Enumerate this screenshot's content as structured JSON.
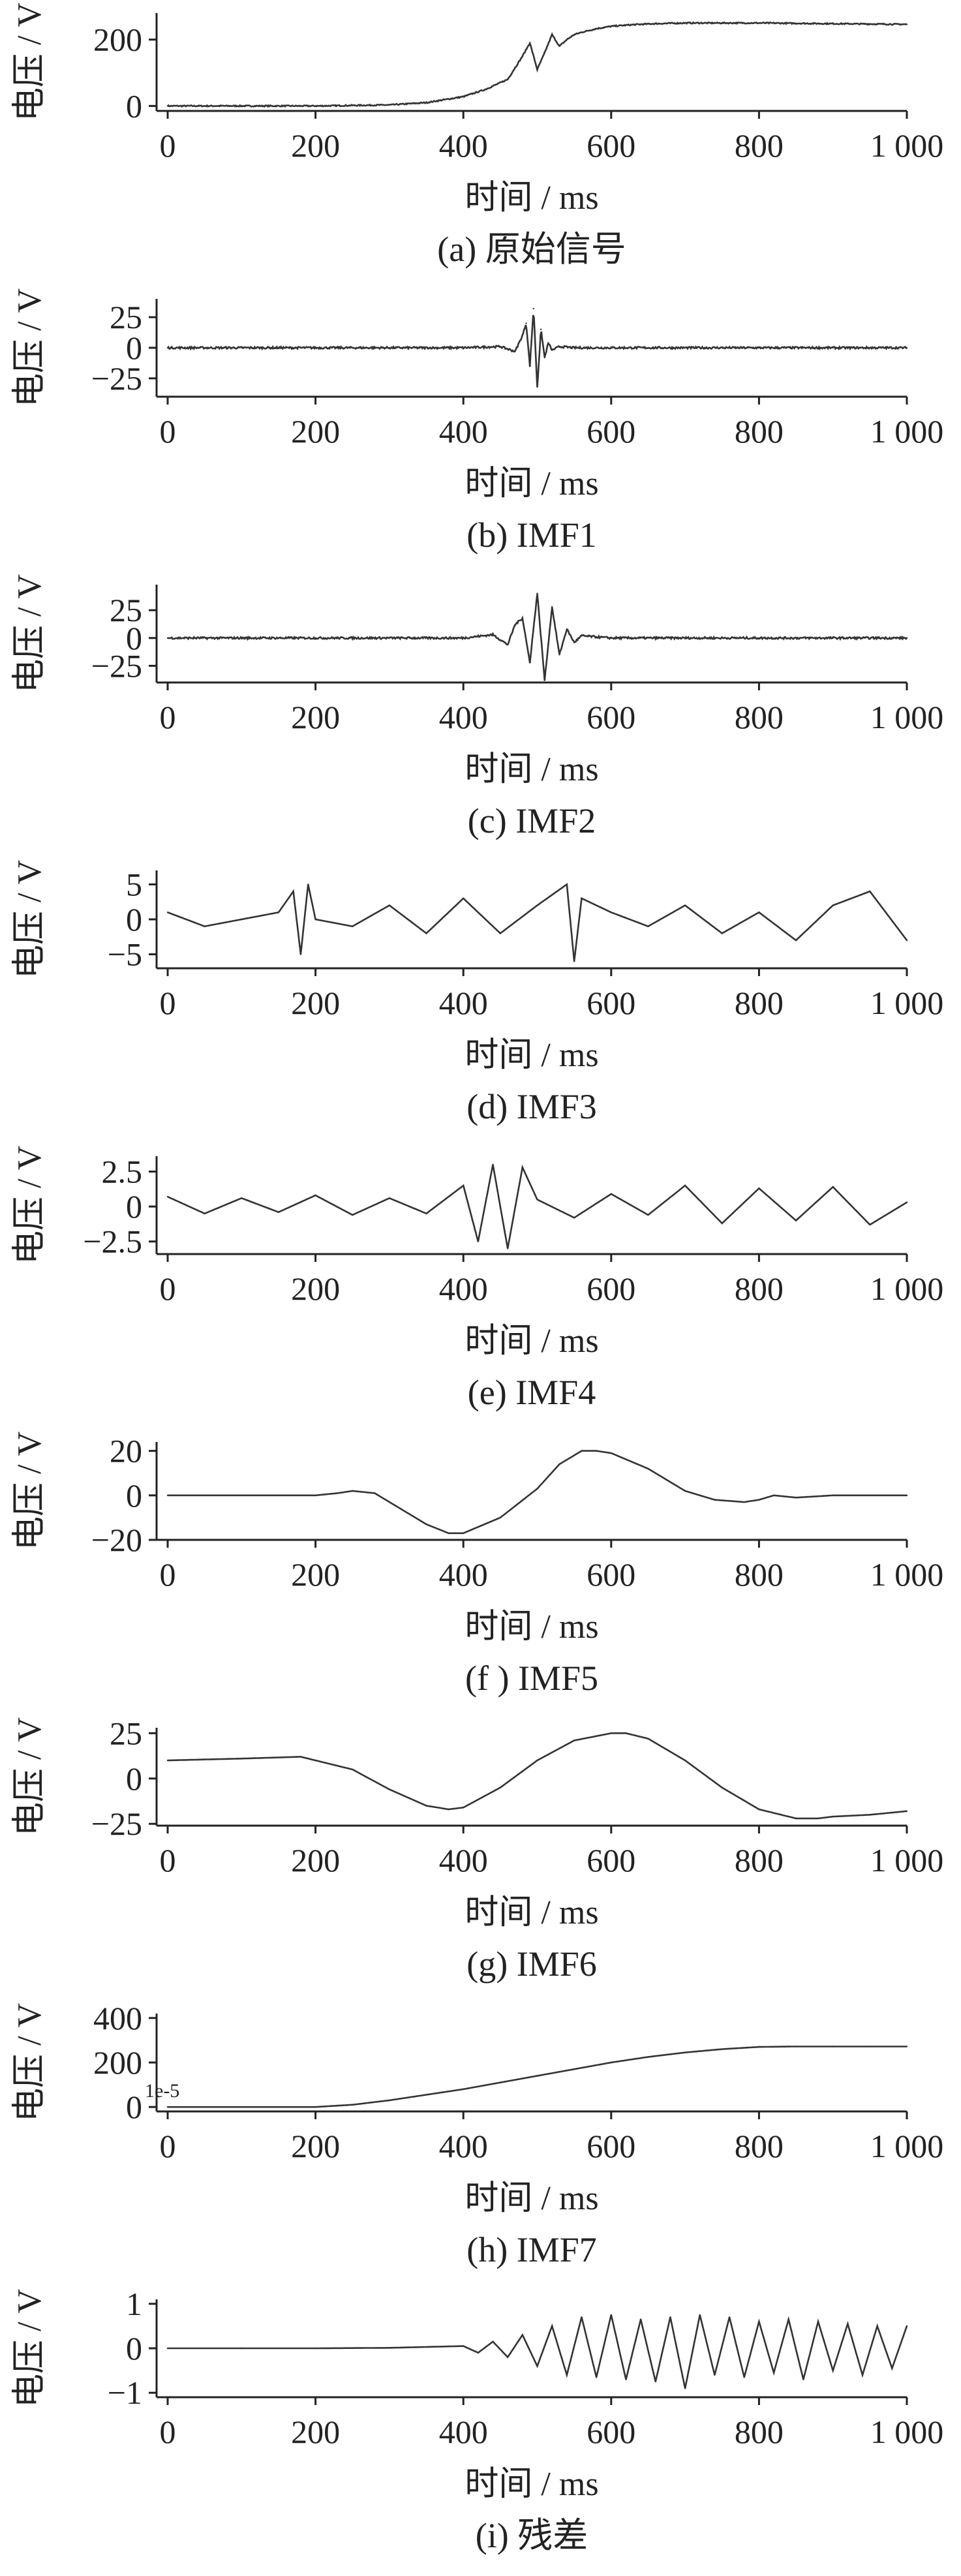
{
  "chart_data": [
    {
      "type": "line",
      "caption": "(a)  原始信号",
      "xlabel": "时间 / ms",
      "ylabel": "电压 / V",
      "xlim": [
        -15,
        1000
      ],
      "ylim": [
        -15,
        280
      ],
      "xticks": [
        0,
        200,
        400,
        600,
        800,
        1000
      ],
      "xtick_labels": [
        "0",
        "200",
        "400",
        "600",
        "800",
        "1 000"
      ],
      "yticks": [
        0,
        200
      ],
      "ytick_labels": [
        "0",
        "200"
      ],
      "series": [
        {
          "x": [
            0,
            100,
            200,
            300,
            350,
            400,
            430,
            460,
            480,
            490,
            500,
            510,
            520,
            530,
            540,
            550,
            560,
            580,
            600,
            630,
            660,
            700,
            750,
            800,
            850,
            900,
            950,
            1000
          ],
          "y": [
            0,
            0,
            0,
            3,
            10,
            28,
            50,
            80,
            150,
            190,
            110,
            160,
            215,
            180,
            200,
            215,
            222,
            233,
            240,
            245,
            248,
            250,
            250,
            250,
            249,
            248,
            247,
            246
          ]
        }
      ]
    },
    {
      "type": "line",
      "caption": "(b)  IMF1",
      "xlabel": "时间 / ms",
      "ylabel": "电压 / V",
      "xlim": [
        -15,
        1000
      ],
      "ylim": [
        -40,
        40
      ],
      "xticks": [
        0,
        200,
        400,
        600,
        800,
        1000
      ],
      "xtick_labels": [
        "0",
        "200",
        "400",
        "600",
        "800",
        "1 000"
      ],
      "yticks": [
        -25,
        0,
        25
      ],
      "ytick_labels": [
        "−25",
        "0",
        "25"
      ],
      "series": [
        {
          "x": [
            0,
            100,
            200,
            300,
            400,
            450,
            470,
            480,
            485,
            490,
            495,
            500,
            505,
            510,
            515,
            520,
            530,
            550,
            600,
            700,
            800,
            900,
            1000
          ],
          "y": [
            0,
            0,
            0,
            0,
            0,
            1,
            -3,
            10,
            20,
            -15,
            32,
            -32,
            15,
            -8,
            4,
            -2,
            1,
            0,
            0,
            0,
            0,
            0,
            0
          ]
        }
      ]
    },
    {
      "type": "line",
      "caption": "(c)  IMF2",
      "xlabel": "时间 / ms",
      "ylabel": "电压 / V",
      "xlim": [
        -15,
        1000
      ],
      "ylim": [
        -40,
        48
      ],
      "xticks": [
        0,
        200,
        400,
        600,
        800,
        1000
      ],
      "xtick_labels": [
        "0",
        "200",
        "400",
        "600",
        "800",
        "1 000"
      ],
      "yticks": [
        -25,
        0,
        25
      ],
      "ytick_labels": [
        "−25",
        "0",
        "25"
      ],
      "series": [
        {
          "x": [
            0,
            100,
            200,
            300,
            400,
            440,
            460,
            470,
            480,
            490,
            500,
            510,
            520,
            530,
            540,
            550,
            560,
            600,
            700,
            800,
            900,
            1000
          ],
          "y": [
            0,
            0,
            0,
            0,
            0,
            3,
            -6,
            12,
            18,
            -22,
            40,
            -38,
            28,
            -15,
            8,
            -4,
            2,
            0,
            0,
            0,
            0,
            0
          ]
        }
      ]
    },
    {
      "type": "line",
      "caption": "(d)  IMF3",
      "xlabel": "时间 / ms",
      "ylabel": "电压 / V",
      "xlim": [
        -15,
        1000
      ],
      "ylim": [
        -7,
        7
      ],
      "xticks": [
        0,
        200,
        400,
        600,
        800,
        1000
      ],
      "xtick_labels": [
        "0",
        "200",
        "400",
        "600",
        "800",
        "1 000"
      ],
      "yticks": [
        -5,
        0,
        5
      ],
      "ytick_labels": [
        "−5",
        "0",
        "5"
      ],
      "series": [
        {
          "x": [
            0,
            50,
            100,
            150,
            170,
            180,
            190,
            200,
            250,
            300,
            350,
            400,
            450,
            500,
            540,
            550,
            560,
            600,
            650,
            700,
            750,
            800,
            850,
            900,
            950,
            1000
          ],
          "y": [
            1,
            -1,
            0,
            1,
            4,
            -5,
            5,
            0,
            -1,
            2,
            -2,
            3,
            -2,
            2,
            5,
            -6,
            3,
            1,
            -1,
            2,
            -2,
            1,
            -3,
            2,
            4,
            -3
          ]
        }
      ]
    },
    {
      "type": "line",
      "caption": "(e)  IMF4",
      "xlabel": "时间 / ms",
      "ylabel": "电压 / V",
      "xlim": [
        -15,
        1000
      ],
      "ylim": [
        -3.4,
        3.6
      ],
      "xticks": [
        0,
        200,
        400,
        600,
        800,
        1000
      ],
      "xtick_labels": [
        "0",
        "200",
        "400",
        "600",
        "800",
        "1 000"
      ],
      "yticks": [
        -2.5,
        0,
        2.5
      ],
      "ytick_labels": [
        "−2.5",
        "0",
        "2.5"
      ],
      "series": [
        {
          "x": [
            0,
            50,
            100,
            150,
            200,
            250,
            300,
            350,
            400,
            420,
            440,
            460,
            480,
            500,
            550,
            600,
            650,
            700,
            750,
            800,
            850,
            900,
            950,
            1000
          ],
          "y": [
            0.7,
            -0.5,
            0.6,
            -0.4,
            0.8,
            -0.6,
            0.6,
            -0.5,
            1.5,
            -2.5,
            3.0,
            -3.0,
            2.8,
            0.5,
            -0.8,
            0.9,
            -0.6,
            1.5,
            -1.2,
            1.3,
            -1.0,
            1.4,
            -1.3,
            0.3
          ]
        }
      ]
    },
    {
      "type": "line",
      "caption": "(f )  IMF5",
      "xlabel": "时间 / ms",
      "ylabel": "电压 / V",
      "xlim": [
        -15,
        1000
      ],
      "ylim": [
        -20,
        24
      ],
      "xticks": [
        0,
        200,
        400,
        600,
        800,
        1000
      ],
      "xtick_labels": [
        "0",
        "200",
        "400",
        "600",
        "800",
        "1 000"
      ],
      "yticks": [
        -20,
        0,
        20
      ],
      "ytick_labels": [
        "−20",
        "0",
        "20"
      ],
      "series": [
        {
          "x": [
            0,
            100,
            200,
            230,
            250,
            280,
            300,
            350,
            380,
            400,
            450,
            500,
            530,
            560,
            580,
            600,
            650,
            700,
            740,
            780,
            800,
            820,
            850,
            900,
            950,
            1000
          ],
          "y": [
            0,
            0,
            0,
            1,
            2,
            1,
            -3,
            -13,
            -17,
            -17,
            -10,
            3,
            14,
            20,
            20,
            19,
            12,
            2,
            -2,
            -3,
            -2,
            0,
            -1,
            0,
            0,
            0
          ]
        }
      ]
    },
    {
      "type": "line",
      "caption": "(g)  IMF6",
      "xlabel": "时间 / ms",
      "ylabel": "电压 / V",
      "xlim": [
        -15,
        1000
      ],
      "ylim": [
        -26,
        28
      ],
      "xticks": [
        0,
        200,
        400,
        600,
        800,
        1000
      ],
      "xtick_labels": [
        "0",
        "200",
        "400",
        "600",
        "800",
        "1 000"
      ],
      "yticks": [
        -25,
        0,
        25
      ],
      "ytick_labels": [
        "−25",
        "0",
        "25"
      ],
      "series": [
        {
          "x": [
            0,
            100,
            180,
            250,
            300,
            350,
            380,
            400,
            450,
            500,
            550,
            600,
            620,
            650,
            700,
            750,
            800,
            850,
            880,
            900,
            950,
            1000
          ],
          "y": [
            10,
            11,
            12,
            5,
            -6,
            -15,
            -17,
            -16,
            -5,
            10,
            21,
            25,
            25,
            22,
            10,
            -5,
            -17,
            -22,
            -22,
            -21,
            -20,
            -18
          ]
        }
      ]
    },
    {
      "type": "line",
      "caption": "(h)  IMF7",
      "xlabel": "时间 / ms",
      "ylabel": "电压 / V",
      "offset_label": "1e-5",
      "xlim": [
        -15,
        1000
      ],
      "ylim": [
        -20,
        420
      ],
      "xticks": [
        0,
        200,
        400,
        600,
        800,
        1000
      ],
      "xtick_labels": [
        "0",
        "200",
        "400",
        "600",
        "800",
        "1 000"
      ],
      "yticks": [
        0,
        200,
        400
      ],
      "ytick_labels": [
        "0",
        "200",
        "400"
      ],
      "series": [
        {
          "x": [
            0,
            100,
            200,
            250,
            300,
            350,
            400,
            450,
            500,
            550,
            600,
            650,
            700,
            750,
            800,
            850,
            900,
            950,
            1000
          ],
          "y": [
            0,
            0,
            0,
            10,
            30,
            55,
            80,
            110,
            140,
            170,
            200,
            225,
            245,
            260,
            270,
            272,
            272,
            272,
            272
          ]
        }
      ]
    },
    {
      "type": "line",
      "caption": "(i)  残差",
      "xlabel": "时间 / ms",
      "ylabel": "电压 / V",
      "xlim": [
        -15,
        1000
      ],
      "ylim": [
        -1.1,
        1.1
      ],
      "xticks": [
        0,
        200,
        400,
        600,
        800,
        1000
      ],
      "xtick_labels": [
        "0",
        "200",
        "400",
        "600",
        "800",
        "1 000"
      ],
      "yticks": [
        -1,
        0,
        1
      ],
      "ytick_labels": [
        "−1",
        "0",
        "1"
      ],
      "series": [
        {
          "x": [
            0,
            100,
            200,
            300,
            400,
            420,
            440,
            460,
            480,
            500,
            520,
            540,
            560,
            580,
            600,
            620,
            640,
            660,
            680,
            700,
            720,
            740,
            760,
            780,
            800,
            820,
            840,
            860,
            880,
            900,
            920,
            940,
            960,
            980,
            1000
          ],
          "y": [
            0,
            0,
            0,
            0.01,
            0.05,
            -0.1,
            0.15,
            -0.2,
            0.3,
            -0.4,
            0.5,
            -0.6,
            0.7,
            -0.65,
            0.75,
            -0.7,
            0.65,
            -0.75,
            0.7,
            -0.9,
            0.75,
            -0.6,
            0.7,
            -0.65,
            0.6,
            -0.55,
            0.65,
            -0.7,
            0.6,
            -0.5,
            0.55,
            -0.6,
            0.5,
            -0.45,
            0.5
          ]
        }
      ]
    }
  ]
}
